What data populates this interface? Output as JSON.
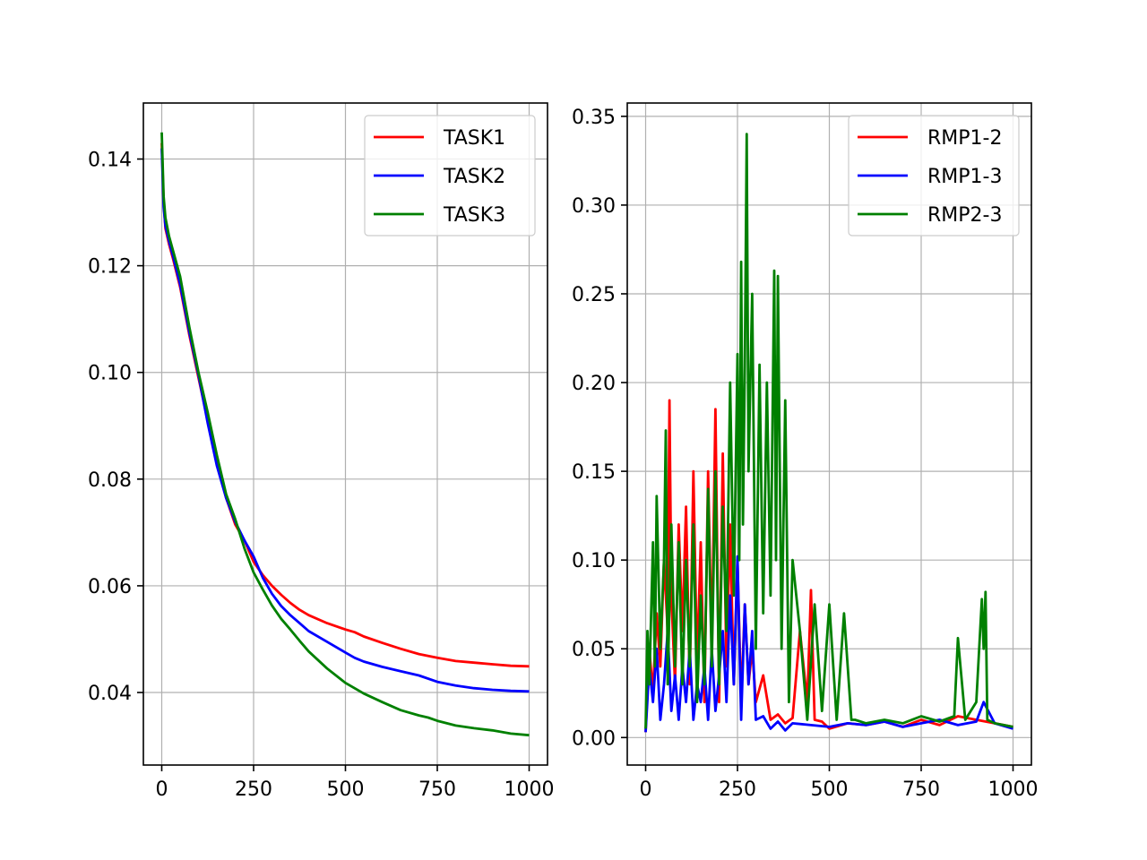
{
  "chart_data": [
    {
      "type": "line",
      "title": "",
      "xlabel": "",
      "ylabel": "",
      "xlim": [
        -50,
        1050
      ],
      "ylim": [
        0.0264,
        0.1505
      ],
      "xticks": [
        0,
        250,
        500,
        750,
        1000
      ],
      "xtick_labels": [
        "0",
        "250",
        "500",
        "750",
        "1000"
      ],
      "yticks": [
        0.04,
        0.06,
        0.08,
        0.1,
        0.12,
        0.14
      ],
      "ytick_labels": [
        "0.04",
        "0.06",
        "0.08",
        "0.10",
        "0.12",
        "0.14"
      ],
      "grid": true,
      "legend_position": "top-right",
      "series": [
        {
          "name": "TASK1",
          "color": "#ff0000",
          "x": [
            0,
            5,
            10,
            20,
            30,
            50,
            75,
            100,
            125,
            150,
            175,
            200,
            225,
            250,
            275,
            300,
            325,
            350,
            375,
            400,
            450,
            500,
            525,
            550,
            600,
            650,
            700,
            750,
            800,
            850,
            900,
            950,
            1000
          ],
          "y": [
            0.143,
            0.132,
            0.127,
            0.124,
            0.1215,
            0.116,
            0.107,
            0.099,
            0.091,
            0.083,
            0.0765,
            0.0715,
            0.0685,
            0.0645,
            0.062,
            0.06,
            0.0583,
            0.0568,
            0.0555,
            0.0545,
            0.053,
            0.0518,
            0.0513,
            0.0505,
            0.0493,
            0.0482,
            0.0472,
            0.0465,
            0.0459,
            0.0456,
            0.0453,
            0.045,
            0.0449
          ]
        },
        {
          "name": "TASK2",
          "color": "#0000ff",
          "x": [
            0,
            5,
            10,
            20,
            30,
            50,
            75,
            100,
            125,
            150,
            175,
            200,
            225,
            250,
            275,
            300,
            325,
            350,
            375,
            400,
            450,
            500,
            525,
            550,
            600,
            650,
            700,
            750,
            800,
            850,
            900,
            950,
            1000
          ],
          "y": [
            0.142,
            0.131,
            0.1275,
            0.1245,
            0.122,
            0.1165,
            0.1075,
            0.0995,
            0.0905,
            0.0825,
            0.0765,
            0.072,
            0.0685,
            0.0655,
            0.0615,
            0.0585,
            0.0562,
            0.0545,
            0.053,
            0.0515,
            0.0495,
            0.0475,
            0.0465,
            0.0458,
            0.0448,
            0.044,
            0.0432,
            0.042,
            0.0413,
            0.0408,
            0.0405,
            0.0403,
            0.0402
          ]
        },
        {
          "name": "TASK3",
          "color": "#008000",
          "x": [
            0,
            5,
            10,
            20,
            30,
            50,
            75,
            100,
            125,
            150,
            175,
            200,
            225,
            250,
            275,
            300,
            325,
            350,
            375,
            400,
            450,
            500,
            550,
            600,
            650,
            700,
            725,
            750,
            800,
            850,
            900,
            950,
            1000
          ],
          "y": [
            0.145,
            0.133,
            0.129,
            0.1255,
            0.123,
            0.118,
            0.1085,
            0.1,
            0.0925,
            0.0845,
            0.0772,
            0.0725,
            0.067,
            0.0625,
            0.0593,
            0.0563,
            0.0538,
            0.0518,
            0.0497,
            0.0477,
            0.0445,
            0.0418,
            0.0398,
            0.0382,
            0.0367,
            0.0357,
            0.0353,
            0.0347,
            0.0338,
            0.0333,
            0.0329,
            0.0323,
            0.032
          ]
        }
      ]
    },
    {
      "type": "line",
      "title": "",
      "xlabel": "",
      "ylabel": "",
      "xlim": [
        -50,
        1050
      ],
      "ylim": [
        -0.0155,
        0.3575
      ],
      "xticks": [
        0,
        250,
        500,
        750,
        1000
      ],
      "xtick_labels": [
        "0",
        "250",
        "500",
        "750",
        "1000"
      ],
      "yticks": [
        0.0,
        0.05,
        0.1,
        0.15,
        0.2,
        0.25,
        0.3,
        0.35
      ],
      "ytick_labels": [
        "0.00",
        "0.05",
        "0.10",
        "0.15",
        "0.20",
        "0.25",
        "0.30",
        "0.35"
      ],
      "grid": true,
      "legend_position": "top-right",
      "series": [
        {
          "name": "RMP1-2",
          "color": "#ff0000",
          "x": [
            0,
            10,
            20,
            30,
            40,
            50,
            60,
            65,
            70,
            80,
            90,
            100,
            110,
            120,
            130,
            140,
            150,
            160,
            170,
            180,
            190,
            200,
            210,
            220,
            230,
            240,
            250,
            260,
            270,
            280,
            290,
            300,
            320,
            340,
            360,
            380,
            400,
            420,
            440,
            450,
            460,
            480,
            500,
            550,
            600,
            650,
            700,
            750,
            800,
            850,
            900,
            950,
            1000
          ],
          "y": [
            0.003,
            0.05,
            0.025,
            0.07,
            0.04,
            0.1,
            0.06,
            0.19,
            0.08,
            0.03,
            0.12,
            0.06,
            0.13,
            0.03,
            0.15,
            0.04,
            0.11,
            0.02,
            0.15,
            0.05,
            0.185,
            0.02,
            0.16,
            0.04,
            0.12,
            0.03,
            0.1,
            0.02,
            0.075,
            0.03,
            0.05,
            0.02,
            0.035,
            0.01,
            0.013,
            0.008,
            0.011,
            0.06,
            0.02,
            0.083,
            0.01,
            0.009,
            0.005,
            0.008,
            0.007,
            0.009,
            0.006,
            0.01,
            0.007,
            0.012,
            0.01,
            0.008,
            0.006
          ]
        },
        {
          "name": "RMP1-3",
          "color": "#0000ff",
          "x": [
            0,
            10,
            20,
            30,
            40,
            50,
            60,
            70,
            80,
            90,
            100,
            110,
            120,
            130,
            140,
            150,
            160,
            170,
            180,
            190,
            200,
            210,
            220,
            230,
            240,
            250,
            260,
            270,
            280,
            290,
            300,
            320,
            340,
            360,
            380,
            400,
            450,
            500,
            550,
            600,
            650,
            700,
            750,
            800,
            850,
            900,
            920,
            950,
            1000
          ],
          "y": [
            0.003,
            0.04,
            0.02,
            0.05,
            0.01,
            0.03,
            0.06,
            0.015,
            0.035,
            0.01,
            0.04,
            0.02,
            0.05,
            0.01,
            0.03,
            0.02,
            0.04,
            0.01,
            0.05,
            0.015,
            0.035,
            0.06,
            0.02,
            0.08,
            0.03,
            0.102,
            0.01,
            0.075,
            0.03,
            0.06,
            0.01,
            0.012,
            0.005,
            0.009,
            0.004,
            0.008,
            0.007,
            0.006,
            0.008,
            0.007,
            0.009,
            0.006,
            0.008,
            0.01,
            0.007,
            0.009,
            0.02,
            0.008,
            0.005
          ]
        },
        {
          "name": "RMP2-3",
          "color": "#008000",
          "x": [
            0,
            5,
            10,
            20,
            25,
            30,
            40,
            50,
            55,
            60,
            70,
            80,
            90,
            100,
            110,
            120,
            130,
            140,
            150,
            160,
            170,
            180,
            190,
            200,
            210,
            220,
            230,
            240,
            250,
            255,
            260,
            265,
            270,
            275,
            280,
            290,
            300,
            310,
            320,
            330,
            340,
            350,
            355,
            360,
            370,
            380,
            390,
            400,
            420,
            440,
            460,
            480,
            500,
            520,
            540,
            560,
            570,
            600,
            650,
            700,
            750,
            800,
            840,
            850,
            870,
            900,
            915,
            920,
            925,
            930,
            950,
            1000
          ],
          "y": [
            0.005,
            0.06,
            0.03,
            0.11,
            0.04,
            0.136,
            0.05,
            0.1,
            0.173,
            0.03,
            0.12,
            0.04,
            0.11,
            0.03,
            0.1,
            0.04,
            0.12,
            0.02,
            0.08,
            0.03,
            0.14,
            0.04,
            0.15,
            0.03,
            0.13,
            0.06,
            0.2,
            0.08,
            0.216,
            0.1,
            0.268,
            0.12,
            0.21,
            0.34,
            0.15,
            0.25,
            0.05,
            0.21,
            0.07,
            0.2,
            0.08,
            0.263,
            0.1,
            0.26,
            0.05,
            0.19,
            0.02,
            0.1,
            0.06,
            0.01,
            0.075,
            0.015,
            0.075,
            0.01,
            0.07,
            0.01,
            0.01,
            0.008,
            0.01,
            0.008,
            0.012,
            0.009,
            0.012,
            0.056,
            0.01,
            0.02,
            0.078,
            0.05,
            0.082,
            0.01,
            0.008,
            0.006
          ]
        }
      ]
    }
  ]
}
